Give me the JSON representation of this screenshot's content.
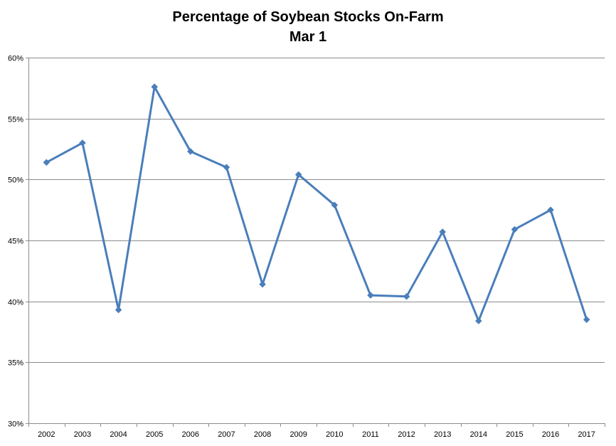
{
  "chart_data": {
    "type": "line",
    "title": "Percentage of Soybean Stocks On-Farm",
    "subtitle": "Mar 1",
    "categories": [
      "2002",
      "2003",
      "2004",
      "2005",
      "2006",
      "2007",
      "2008",
      "2009",
      "2010",
      "2011",
      "2012",
      "2013",
      "2014",
      "2015",
      "2016",
      "2017"
    ],
    "series": [
      {
        "values": [
          51.4,
          53.0,
          39.3,
          57.6,
          52.3,
          51.0,
          41.4,
          50.4,
          47.9,
          40.5,
          40.4,
          45.7,
          38.4,
          45.9,
          47.5,
          38.5
        ],
        "color": "#4a7ebb",
        "marker": "diamond"
      }
    ],
    "ylim": [
      30,
      60
    ],
    "yticks": [
      30,
      35,
      40,
      45,
      50,
      55,
      60
    ],
    "ytick_labels": [
      "30%",
      "35%",
      "40%",
      "45%",
      "50%",
      "55%",
      "60%"
    ],
    "grid": "horizontal",
    "legend": "none"
  }
}
